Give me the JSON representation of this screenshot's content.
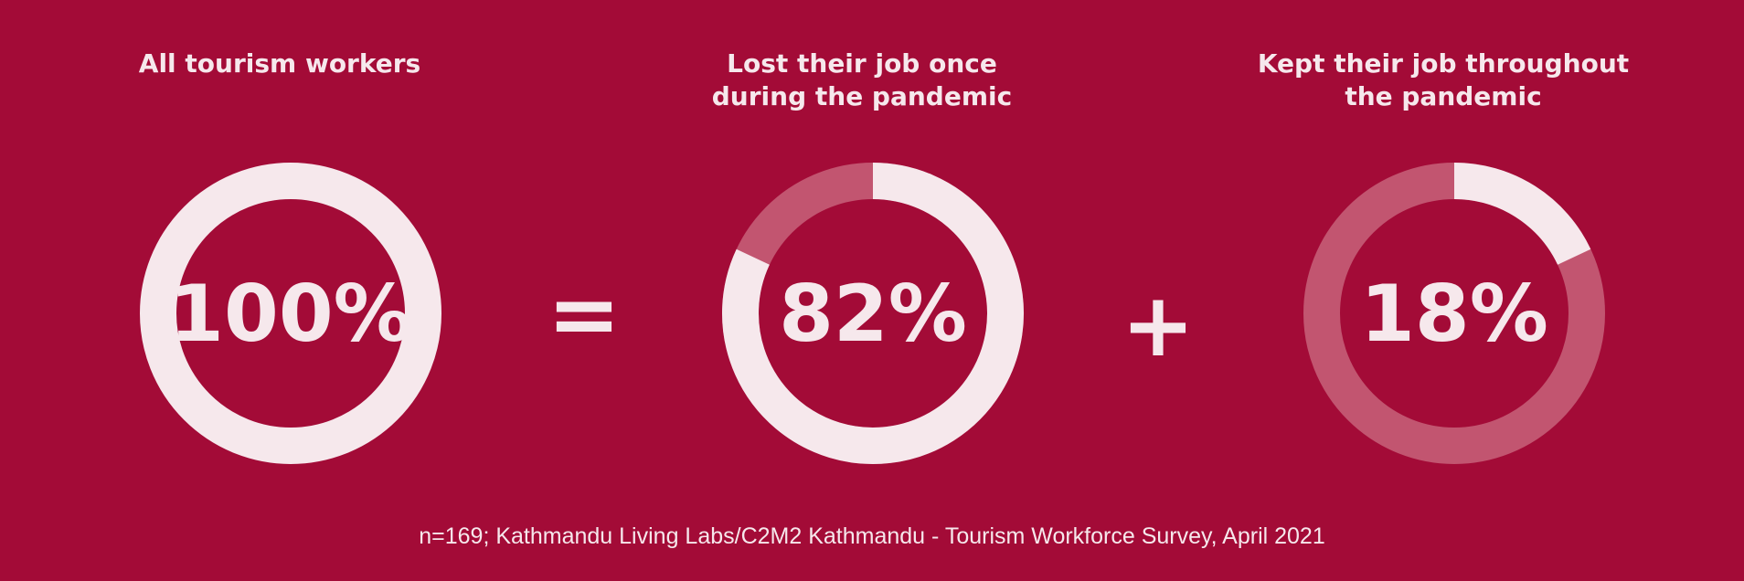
{
  "chart_data": {
    "type": "pie",
    "subtype": "donut",
    "colors": {
      "background": "#a30b37",
      "filled": "#f6e8ec",
      "remaining": "#c25570"
    },
    "items": [
      {
        "title": "All tourism workers",
        "value": 100,
        "label": "100%"
      },
      {
        "title": "Lost their job once\nduring the pandemic",
        "value": 82,
        "label": "82%"
      },
      {
        "title": "Kept their job throughout\nthe pandemic",
        "value": 18,
        "label": "18%"
      }
    ],
    "operators": [
      "=",
      "+"
    ],
    "footnote": "n=169; Kathmandu Living Labs/C2M2 Kathmandu - Tourism Workforce Survey, April 2021"
  }
}
